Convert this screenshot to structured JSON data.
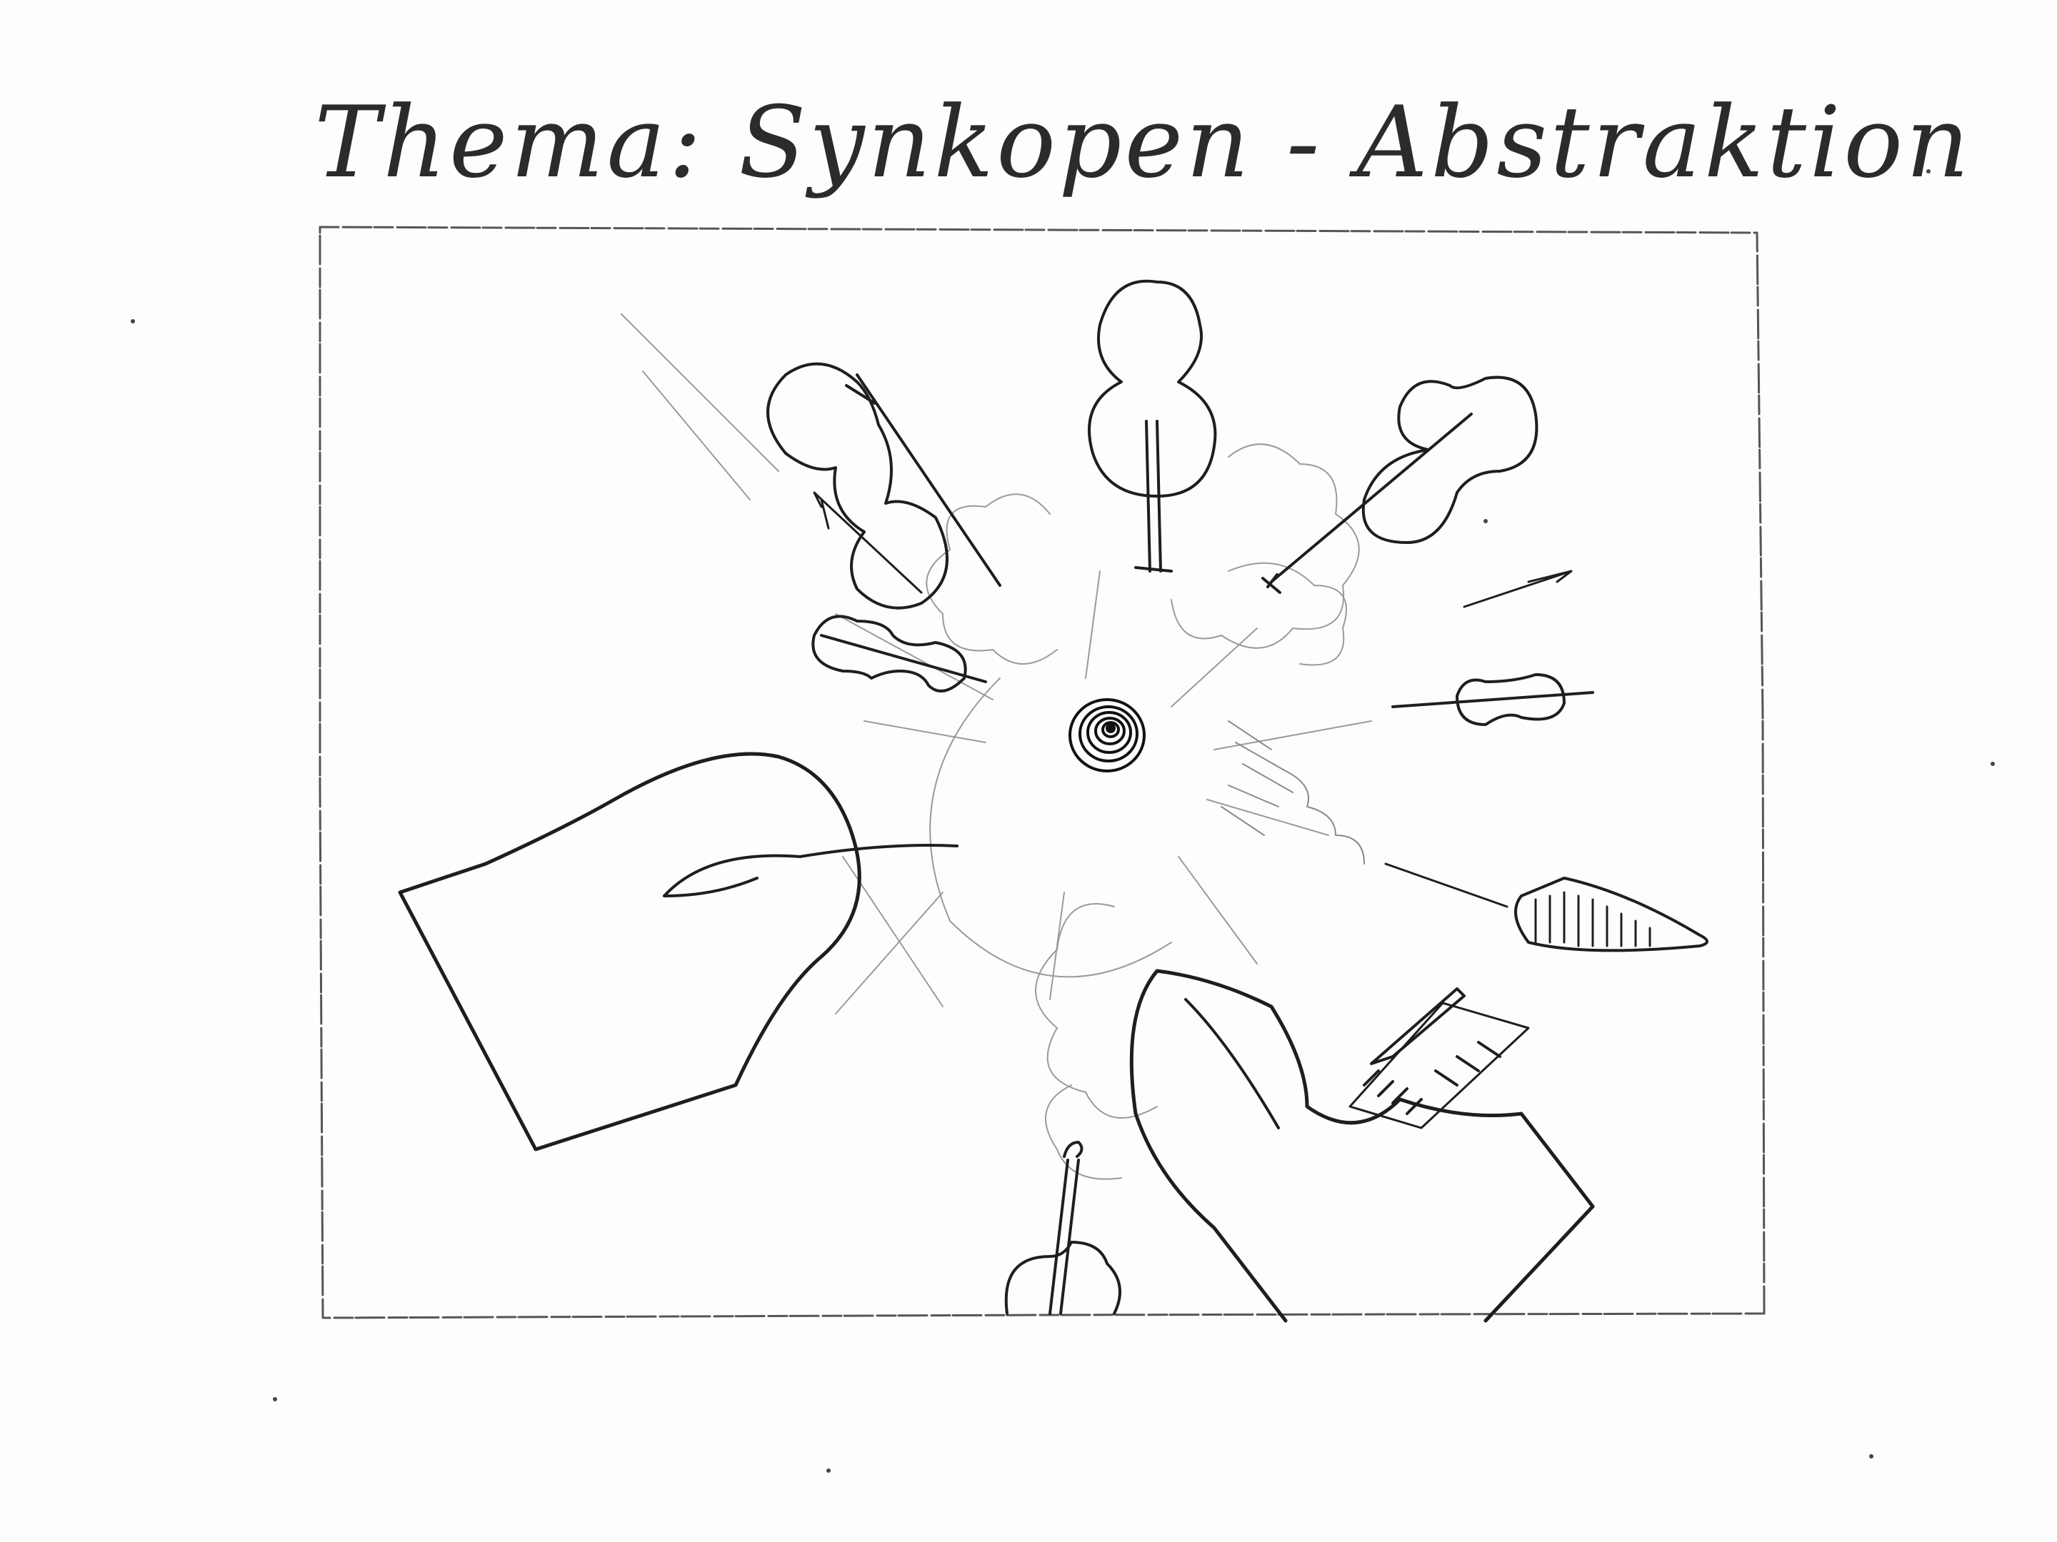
{
  "title": "Thema: Synkopen - Abstraktion",
  "colors": {
    "paper": "#fdfdfd",
    "pencil": "#1e1e1e",
    "light_pencil": "#9a9a9a"
  },
  "drawing": {
    "subjects": [
      "violins",
      "cellos",
      "grand-piano",
      "grand-piano",
      "harp",
      "violin",
      "horn",
      "spiral-vortex",
      "music-clouds",
      "motion-lines"
    ]
  }
}
